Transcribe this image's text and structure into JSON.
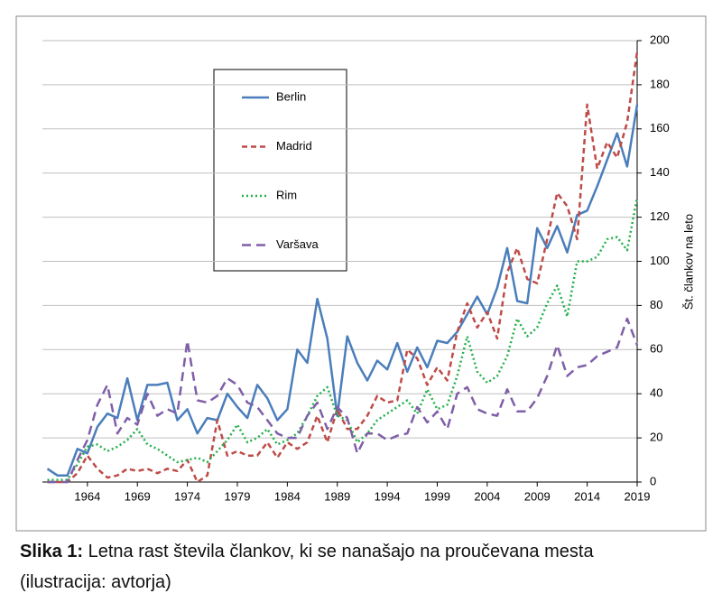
{
  "chart_data": {
    "type": "line",
    "y_label": "Št. člankov na leto",
    "x": [
      1960,
      1961,
      1962,
      1963,
      1964,
      1965,
      1966,
      1967,
      1968,
      1969,
      1970,
      1971,
      1972,
      1973,
      1974,
      1975,
      1976,
      1977,
      1978,
      1979,
      1980,
      1981,
      1982,
      1983,
      1984,
      1985,
      1986,
      1987,
      1988,
      1989,
      1990,
      1991,
      1992,
      1993,
      1994,
      1995,
      1996,
      1997,
      1998,
      1999,
      2000,
      2001,
      2002,
      2003,
      2004,
      2005,
      2006,
      2007,
      2008,
      2009,
      2010,
      2011,
      2012,
      2013,
      2014,
      2015,
      2016,
      2017,
      2018,
      2019
    ],
    "series": [
      {
        "name": "Berlin",
        "color": "#4a7ebb",
        "dash": "solid",
        "values": [
          6,
          3,
          3,
          15,
          13,
          25,
          31,
          29,
          47,
          28,
          44,
          44,
          45,
          28,
          33,
          22,
          29,
          28,
          40,
          34,
          29,
          44,
          38,
          28,
          33,
          60,
          54,
          83,
          65,
          30,
          66,
          54,
          46,
          55,
          51,
          63,
          50,
          61,
          52,
          64,
          63,
          68,
          76,
          84,
          76,
          88,
          106,
          82,
          81,
          115,
          106,
          116,
          104,
          121,
          123,
          134,
          146,
          158,
          143,
          171
        ]
      },
      {
        "name": "Madrid",
        "color": "#be4b48",
        "dash": "dashed",
        "values": [
          0,
          0,
          0,
          4,
          12,
          6,
          2,
          3,
          6,
          5,
          6,
          4,
          6,
          5,
          10,
          0,
          3,
          28,
          12,
          14,
          12,
          12,
          18,
          11,
          18,
          15,
          18,
          30,
          18,
          33,
          24,
          24,
          30,
          39,
          36,
          37,
          60,
          56,
          44,
          52,
          46,
          68,
          81,
          70,
          77,
          65,
          95,
          106,
          92,
          90,
          110,
          131,
          125,
          110,
          171,
          142,
          154,
          147,
          163,
          195
        ]
      },
      {
        "name": "Rim",
        "color": "#22b04a",
        "dash": "dotted",
        "values": [
          1,
          1,
          1,
          8,
          16,
          17,
          14,
          16,
          19,
          24,
          17,
          15,
          12,
          9,
          10,
          11,
          9,
          14,
          19,
          26,
          18,
          20,
          24,
          17,
          19,
          22,
          30,
          39,
          43,
          30,
          28,
          18,
          22,
          28,
          31,
          34,
          37,
          31,
          42,
          33,
          35,
          48,
          66,
          50,
          45,
          48,
          57,
          74,
          66,
          70,
          81,
          89,
          75,
          100,
          100,
          102,
          110,
          111,
          105,
          129
        ]
      },
      {
        "name": "Varšava",
        "color": "#7f5fa8",
        "dash": "longdash",
        "values": [
          0,
          0,
          0,
          10,
          19,
          35,
          44,
          22,
          29,
          26,
          40,
          30,
          33,
          31,
          64,
          37,
          36,
          39,
          47,
          44,
          36,
          34,
          28,
          22,
          20,
          20,
          30,
          36,
          24,
          34,
          29,
          13,
          22,
          22,
          19,
          21,
          22,
          34,
          27,
          32,
          24,
          40,
          43,
          33,
          31,
          30,
          42,
          32,
          32,
          38,
          48,
          62,
          48,
          52,
          53,
          57,
          59,
          61,
          74,
          62
        ]
      }
    ],
    "xlim": [
      1959.5,
      2019
    ],
    "xticks": [
      1964,
      1969,
      1974,
      1979,
      1984,
      1989,
      1994,
      1999,
      2004,
      2009,
      2014,
      2019
    ],
    "ylim": [
      0,
      200
    ],
    "yticks": [
      0,
      20,
      40,
      60,
      80,
      100,
      120,
      140,
      160,
      180,
      200
    ],
    "grid": true,
    "y_axis_side": "right"
  },
  "caption": {
    "label": "Slika 1:",
    "lines": [
      "Letna rast števila člankov, ki se nanašajo na proučevana mesta",
      "(ilustracija: avtorja)"
    ]
  }
}
